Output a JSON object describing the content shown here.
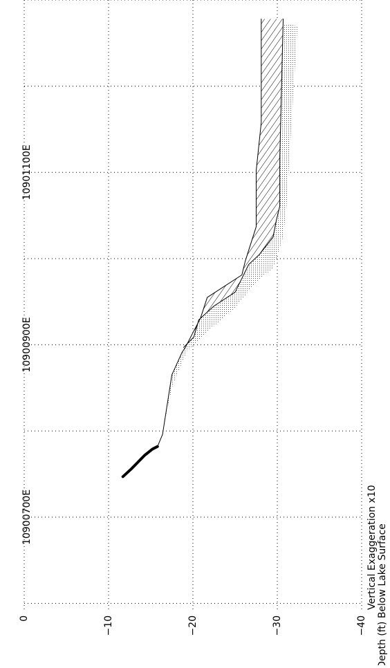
{
  "chart_data": {
    "type": "line",
    "ylabel": "Depth (ft) Below Lake Surface",
    "annotation": "Vertical Exaggeration x10",
    "ylim": [
      0,
      -40
    ],
    "yticks": [
      0,
      {
        "value": -10,
        "label": "−10"
      },
      {
        "value": -20,
        "label": "−20"
      },
      {
        "value": -30,
        "label": "−30"
      },
      {
        "value": -40,
        "label": "−40"
      }
    ],
    "xlim": [
      10900590,
      10901300
    ],
    "xticks": [
      {
        "value": 10900700,
        "label": "10900700E"
      },
      {
        "value": 10900900,
        "label": "10900900E"
      },
      {
        "value": 10901100,
        "label": "10901100E"
      }
    ],
    "xgrid": [
      10900600,
      10900700,
      10900800,
      10900900,
      10901000,
      10901100,
      10901200,
      10901300
    ],
    "grid": true,
    "series": [
      {
        "color": "#000000",
        "width": 4,
        "x": [
          10900747,
          10900756,
          10900764,
          10900772,
          10900779,
          10900782
        ],
        "values": [
          -11.7,
          -12.7,
          -13.5,
          -14.3,
          -15.2,
          -15.8
        ]
      },
      {
        "color": "#000000",
        "width": 1,
        "x": [
          10900782,
          10900796,
          10900865,
          10900891,
          10900897,
          10900931,
          10900955,
          10900981,
          10900997,
          10901037,
          10901102,
          10901158,
          10901278
        ],
        "values": [
          -15.8,
          -16.4,
          -17.5,
          -18.7,
          -19.1,
          -20.9,
          -21.7,
          -25.8,
          -26.2,
          -27.5,
          -27.5,
          -28.1,
          -28.1
        ]
      },
      {
        "color": "#000000",
        "width": 1,
        "x": [
          10900897,
          10900909,
          10900929,
          10900945,
          10900961,
          10900993,
          10901005,
          10901025,
          10901045,
          10901061,
          10901118,
          10901278
        ],
        "values": [
          -18.9,
          -20.1,
          -20.7,
          -22.5,
          -25.0,
          -26.6,
          -27.9,
          -29.5,
          -29.9,
          -30.3,
          -30.3,
          -30.7
        ]
      },
      {
        "color": "#000000",
        "width": 0,
        "x": [
          10900800,
          10900853,
          10900893,
          10900915,
          10900943,
          10900973,
          10900989,
          10901025,
          10901061,
          10901142,
          10901270
        ],
        "values": [
          -16.4,
          -17.6,
          -19.3,
          -21.7,
          -25.0,
          -27.5,
          -29.5,
          -30.7,
          -31.1,
          -31.6,
          -32.4
        ]
      }
    ],
    "fills": [
      {
        "from": 1,
        "to": 3,
        "pattern": "stipple"
      },
      {
        "from": 1,
        "to": 2,
        "pattern": "hatch"
      }
    ]
  }
}
